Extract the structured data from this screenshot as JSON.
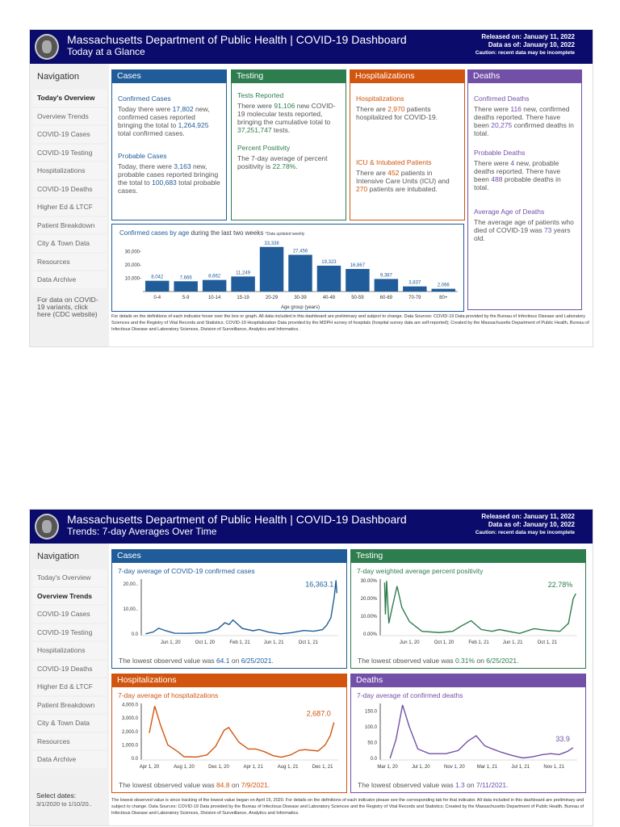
{
  "header": {
    "title": "Massachusetts Department of Public Health  |  COVID-19 Dashboard",
    "released": "Released on: January 11, 2022",
    "data_as_of": "Data as of: January 10, 2022",
    "caution": "Caution: recent data may be incomplete"
  },
  "page1": {
    "subtitle": "Today at a Glance"
  },
  "page2": {
    "subtitle": "Trends: 7-day Averages Over Time"
  },
  "nav": {
    "heading": "Navigation",
    "items": [
      "Today's Overview",
      "Overview Trends",
      "COVID-19 Cases",
      "COVID-19 Testing",
      "Hospitalizations",
      "COVID-19 Deaths",
      "Higher Ed & LTCF",
      "Patient Breakdown",
      "City & Town Data",
      "Resources",
      "Data Archive"
    ],
    "variants_note": "For data on COVID-19 variants, click here (CDC website)",
    "select_dates_label": "Select dates:",
    "select_dates_value": "3/1/2020 to 1/10/20.."
  },
  "colors": {
    "header": "#0b0b6b",
    "cases": "#1f5c99",
    "testing": "#2e7d4f",
    "hospitalizations": "#d2550f",
    "deaths": "#7350a8"
  },
  "overview": {
    "cases": {
      "title": "Cases",
      "confirmed_h": "Confirmed Cases",
      "c1": "Today there were ",
      "new": "17,802",
      "c2": " new, confirmed cases reported bringing the total to ",
      "total": "1,264,925",
      "c3": " total confirmed cases.",
      "probable_h": "Probable Cases",
      "p1": "Today, there were ",
      "pnew": "3,163",
      "p2": " new, probable cases reported bringing the total to ",
      "ptotal": "100,683",
      "p3": " total probable cases."
    },
    "testing": {
      "title": "Testing",
      "tests_h": "Tests Reported",
      "t1": "There were ",
      "new": "91,106",
      "t2": " new COVID-19 molecular tests reported, bringing the cumulative total to ",
      "total": "37,251,747",
      "t3": " tests.",
      "pos_h": "Percent Positivity",
      "p1": "The 7-day average of percent positivity is ",
      "pos": "22.78%",
      "p2": "."
    },
    "hosp": {
      "title": "Hospitalizations",
      "h_h": "Hospitalizations",
      "h1": "There are ",
      "count": "2,970",
      "h2": " patients hospitalized for COVID-19.",
      "icu_h": "ICU & Intubated Patients",
      "i1": "There are ",
      "icu": "452",
      "i2": " patients in Intensive Care Units (ICU) and ",
      "intub": "270",
      "i3": " patients are intubated."
    },
    "deaths": {
      "title": "Deaths",
      "c_h": "Confirmed Deaths",
      "c1": "There were ",
      "new": "116",
      "c2": " new, confirmed deaths reported. There have been ",
      "total": "20,275",
      "c3": " confirmed deaths in total.",
      "p_h": "Probable Deaths",
      "p1": "There were ",
      "pnew": "4",
      "p2": " new, probable deaths reported. There have been ",
      "ptotal": "488",
      "p3": " probable deaths in total.",
      "a_h": "Average Age of Deaths",
      "a1": "The average age of patients who died of COVID-19 was ",
      "age": "73",
      "a2": " years old."
    },
    "footer": "For details on the definitions of each indicator hover over the box or graph. All data included in this dashboard are preliminary and subject to change. Data Sources: COVID-19 Data provided by the Bureau of Infectious Disease and Laboratory Sciences and the Registry of Vital Records and Statistics; COVID-19 Hospitalization Data provided by the MDPH survey of hospitals (hospital survey data are self-reported); Created by the Massachusetts Department of Public Health, Bureau of Infectious Disease and Laboratory Sciences, Division of Surveillance, Analytics and Informatics."
  },
  "trends": {
    "cases": {
      "title": "Cases",
      "lowest_pre": "The lowest observed value was ",
      "lowest": "64.1",
      "on": " on ",
      "date": "6/25/2021",
      "end": "."
    },
    "testing": {
      "title": "Testing",
      "lowest_pre": "The lowest observed value was ",
      "lowest": "0.31%",
      "on": " on ",
      "date": "6/25/2021",
      "end": "."
    },
    "hosp": {
      "title": "Hospitalizations",
      "lowest_pre": "The lowest observed value was ",
      "lowest": "84.8",
      "on": " on ",
      "date": "7/9/2021",
      "end": "."
    },
    "deaths": {
      "title": "Deaths",
      "lowest_pre": "The lowest observed value was ",
      "lowest": "1.3",
      "on": " on ",
      "date": "7/11/2021",
      "end": "."
    },
    "footer": "The lowest observed value is since tracking of the lowest value began on April 15, 2020. For details on the definitions of each indicator please see the corresponding tab for that indicator. All data included in this dashboard are preliminary and subject to change. Data Sources: COVID-19 Data provided by the Bureau of Infectious Disease and Laboratory Sciences and the Registry of Vital Records and Statistics; Created by the Massachusetts Department of Public Health, Bureau of Infectious Disease and Laboratory Sciences, Division of Surveillance, Analytics and Informatics."
  },
  "chart_data": [
    {
      "type": "bar",
      "title_bold": "Confirmed cases by age",
      "title_rest": " during the last two weeks",
      "note": "*Data updated weekly",
      "xlabel": "Age group (years)",
      "categories": [
        "0-4",
        "5-9",
        "10-14",
        "15-19",
        "20-29",
        "30-39",
        "40-49",
        "50-59",
        "60-69",
        "70-79",
        "80+"
      ],
      "values": [
        8042,
        7666,
        8662,
        11249,
        33338,
        27456,
        19323,
        16867,
        9387,
        3837,
        2066
      ],
      "data_labels": [
        "8,042",
        "7,666",
        "8,662",
        "11,249",
        "33,338",
        "27,456",
        "19,323",
        "16,867",
        "9,387",
        "3,837",
        "2,066"
      ],
      "y_ticks": [
        10000,
        20000,
        30000
      ],
      "y_tick_labels": [
        "10,000-",
        "20,000-",
        "30,000-"
      ],
      "ylim": [
        0,
        35000
      ]
    },
    {
      "type": "line",
      "key": "cases",
      "title": "7-day average of COVID-19 confirmed cases",
      "last_label": "16,363.1",
      "y_ticks": [
        0,
        10000,
        20000
      ],
      "y_tick_labels": [
        "0.0",
        "10,00..",
        "20,00.."
      ],
      "ylim": [
        0,
        22000
      ],
      "x_ticks": [
        "2020-06-01",
        "2020-10-01",
        "2021-02-01",
        "2021-06-01",
        "2021-10-01"
      ],
      "x_tick_labels": [
        "Jun 1, 20",
        "Oct 1, 20",
        "Feb 1, 21",
        "Jun 1, 21",
        "Oct 1, 21"
      ],
      "xlim": [
        "2020-03-01",
        "2022-01-15"
      ],
      "x": [
        "2020-03-05",
        "2020-04-01",
        "2020-04-20",
        "2020-05-15",
        "2020-06-15",
        "2020-08-01",
        "2020-10-01",
        "2020-11-15",
        "2020-12-10",
        "2020-12-25",
        "2021-01-08",
        "2021-02-10",
        "2021-03-20",
        "2021-04-10",
        "2021-05-15",
        "2021-06-25",
        "2021-08-01",
        "2021-09-15",
        "2021-10-20",
        "2021-11-20",
        "2021-12-05",
        "2021-12-20",
        "2022-01-01",
        "2022-01-07",
        "2022-01-10"
      ],
      "y": [
        50,
        800,
        2300,
        1300,
        300,
        250,
        500,
        2000,
        4500,
        3800,
        5600,
        2200,
        1300,
        1800,
        700,
        64,
        500,
        1400,
        1100,
        1700,
        3500,
        6500,
        15000,
        21500,
        16363
      ]
    },
    {
      "type": "line",
      "key": "testing",
      "title": "7-day weighted average percent positivity",
      "last_label": "22.78%",
      "y_ticks": [
        0,
        10,
        20,
        30
      ],
      "y_tick_labels": [
        "0.00%",
        "10.00%",
        "20.00%",
        "30.00%"
      ],
      "ylim": [
        0,
        31
      ],
      "x_ticks": [
        "2020-06-01",
        "2020-10-01",
        "2021-02-01",
        "2021-06-01",
        "2021-10-01"
      ],
      "x_tick_labels": [
        "Jun 1, 20",
        "Oct 1, 20",
        "Feb 1, 21",
        "Jun 1, 21",
        "Oct 1, 21"
      ],
      "xlim": [
        "2020-03-01",
        "2022-01-15"
      ],
      "x": [
        "2020-03-05",
        "2020-03-08",
        "2020-03-12",
        "2020-03-20",
        "2020-04-01",
        "2020-04-18",
        "2020-05-05",
        "2020-06-01",
        "2020-07-15",
        "2020-09-15",
        "2020-11-01",
        "2020-12-01",
        "2021-01-05",
        "2021-02-10",
        "2021-03-20",
        "2021-04-15",
        "2021-06-25",
        "2021-08-15",
        "2021-10-01",
        "2021-11-15",
        "2021-12-15",
        "2022-01-01",
        "2022-01-10"
      ],
      "y": [
        29,
        11,
        30,
        6,
        15,
        27,
        15,
        7,
        1.5,
        0.8,
        1.5,
        4.5,
        7.5,
        2.5,
        1.5,
        2.5,
        0.31,
        3,
        2,
        1.5,
        6,
        20,
        22.78
      ]
    },
    {
      "type": "line",
      "key": "hosp",
      "title": "7-day average of hospitalizations",
      "last_label": "2,687.0",
      "y_ticks": [
        0,
        1000,
        2000,
        3000,
        4000
      ],
      "y_tick_labels": [
        "0.0",
        "1,000.0",
        "2,000.0",
        "3,000.0",
        "4,000.0"
      ],
      "ylim": [
        0,
        4100
      ],
      "x_ticks": [
        "2020-04-01",
        "2020-08-01",
        "2020-12-01",
        "2021-04-01",
        "2021-08-01",
        "2021-12-01"
      ],
      "x_tick_labels": [
        "Apr 1, 20",
        "Aug 1, 20",
        "Dec 1, 20",
        "Apr 1, 21",
        "Aug 1, 21",
        "Dec 1, 21"
      ],
      "xlim": [
        "2020-03-15",
        "2022-01-25"
      ],
      "x": [
        "2020-04-01",
        "2020-04-20",
        "2020-05-10",
        "2020-06-05",
        "2020-07-10",
        "2020-08-01",
        "2020-09-15",
        "2020-10-20",
        "2020-11-20",
        "2020-12-20",
        "2021-01-05",
        "2021-02-10",
        "2021-03-15",
        "2021-04-10",
        "2021-05-10",
        "2021-06-10",
        "2021-07-09",
        "2021-08-10",
        "2021-09-10",
        "2021-10-01",
        "2021-11-15",
        "2021-12-10",
        "2021-12-28",
        "2022-01-10"
      ],
      "y": [
        1900,
        3900,
        2500,
        1000,
        500,
        120,
        100,
        250,
        900,
        2100,
        2300,
        1200,
        700,
        700,
        500,
        200,
        85,
        250,
        600,
        650,
        550,
        1000,
        1700,
        2687
      ]
    },
    {
      "type": "line",
      "key": "deaths",
      "title": "7-day average of confirmed deaths",
      "last_label": "33.9",
      "y_ticks": [
        0,
        50,
        100,
        150
      ],
      "y_tick_labels": [
        "0.0",
        "50.0",
        "100.0",
        "150.0"
      ],
      "ylim": [
        0,
        175
      ],
      "x_ticks": [
        "2020-03-01",
        "2020-07-01",
        "2020-11-01",
        "2021-03-01",
        "2021-07-01",
        "2021-11-01"
      ],
      "x_tick_labels": [
        "Mar 1, 20",
        "Jul 1, 20",
        "Nov 1, 20",
        "Mar 1, 21",
        "Jul 1, 21",
        "Nov 1, 21"
      ],
      "xlim": [
        "2020-02-15",
        "2022-01-25"
      ],
      "x": [
        "2020-03-10",
        "2020-04-01",
        "2020-04-25",
        "2020-05-20",
        "2020-06-20",
        "2020-08-01",
        "2020-10-01",
        "2020-11-15",
        "2020-12-20",
        "2021-01-20",
        "2021-02-20",
        "2021-03-20",
        "2021-04-20",
        "2021-05-20",
        "2021-06-20",
        "2021-07-11",
        "2021-08-15",
        "2021-09-20",
        "2021-10-20",
        "2021-11-20",
        "2021-12-20",
        "2022-01-10"
      ],
      "y": [
        0,
        60,
        170,
        100,
        30,
        15,
        15,
        25,
        55,
        72,
        40,
        30,
        20,
        12,
        5,
        1.3,
        5,
        12,
        15,
        12,
        22,
        33.9
      ]
    }
  ]
}
